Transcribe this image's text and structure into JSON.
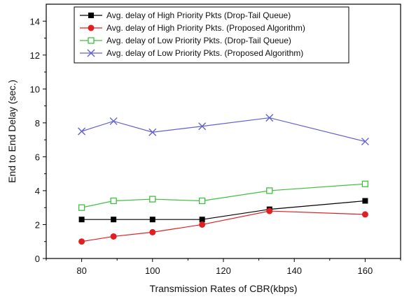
{
  "chart_data": {
    "type": "line",
    "xlabel": "Transmission Rates of CBR(kbps)",
    "ylabel": "End to End Delay (sec.)",
    "xlim": [
      70,
      170
    ],
    "ylim": [
      0,
      15
    ],
    "xticks": [
      80,
      100,
      120,
      140,
      160
    ],
    "yticks": [
      0,
      2,
      4,
      6,
      8,
      10,
      12,
      14
    ],
    "grid": false,
    "legend_position": "top-center",
    "series": [
      {
        "name": "Avg. delay of High Priority Pkts (Drop-Tail Queue)",
        "color": "#000000",
        "marker": "filled-square",
        "x": [
          80,
          89,
          100,
          114,
          133,
          160
        ],
        "y": [
          2.3,
          2.3,
          2.3,
          2.3,
          2.9,
          3.4
        ]
      },
      {
        "name": "Avg. delay of High Priority Pkts. (Proposed Algorithm)",
        "color": "#e02020",
        "marker": "filled-circle",
        "x": [
          80,
          89,
          100,
          114,
          133,
          160
        ],
        "y": [
          1.0,
          1.3,
          1.55,
          2.0,
          2.8,
          2.6
        ]
      },
      {
        "name": "Avg. delay of Low Priority Pkts. (Drop-Tail Queue)",
        "color": "#3fbf3f",
        "marker": "open-square",
        "x": [
          80,
          89,
          100,
          114,
          133,
          160
        ],
        "y": [
          3.0,
          3.4,
          3.5,
          3.4,
          4.0,
          4.4
        ]
      },
      {
        "name": "Avg. delay of Low Priority Pkts. (Proposed Algorithm)",
        "color": "#6060d0",
        "marker": "x",
        "x": [
          80,
          89,
          100,
          114,
          133,
          160
        ],
        "y": [
          7.5,
          8.1,
          7.45,
          7.8,
          8.3,
          6.9
        ]
      }
    ]
  }
}
